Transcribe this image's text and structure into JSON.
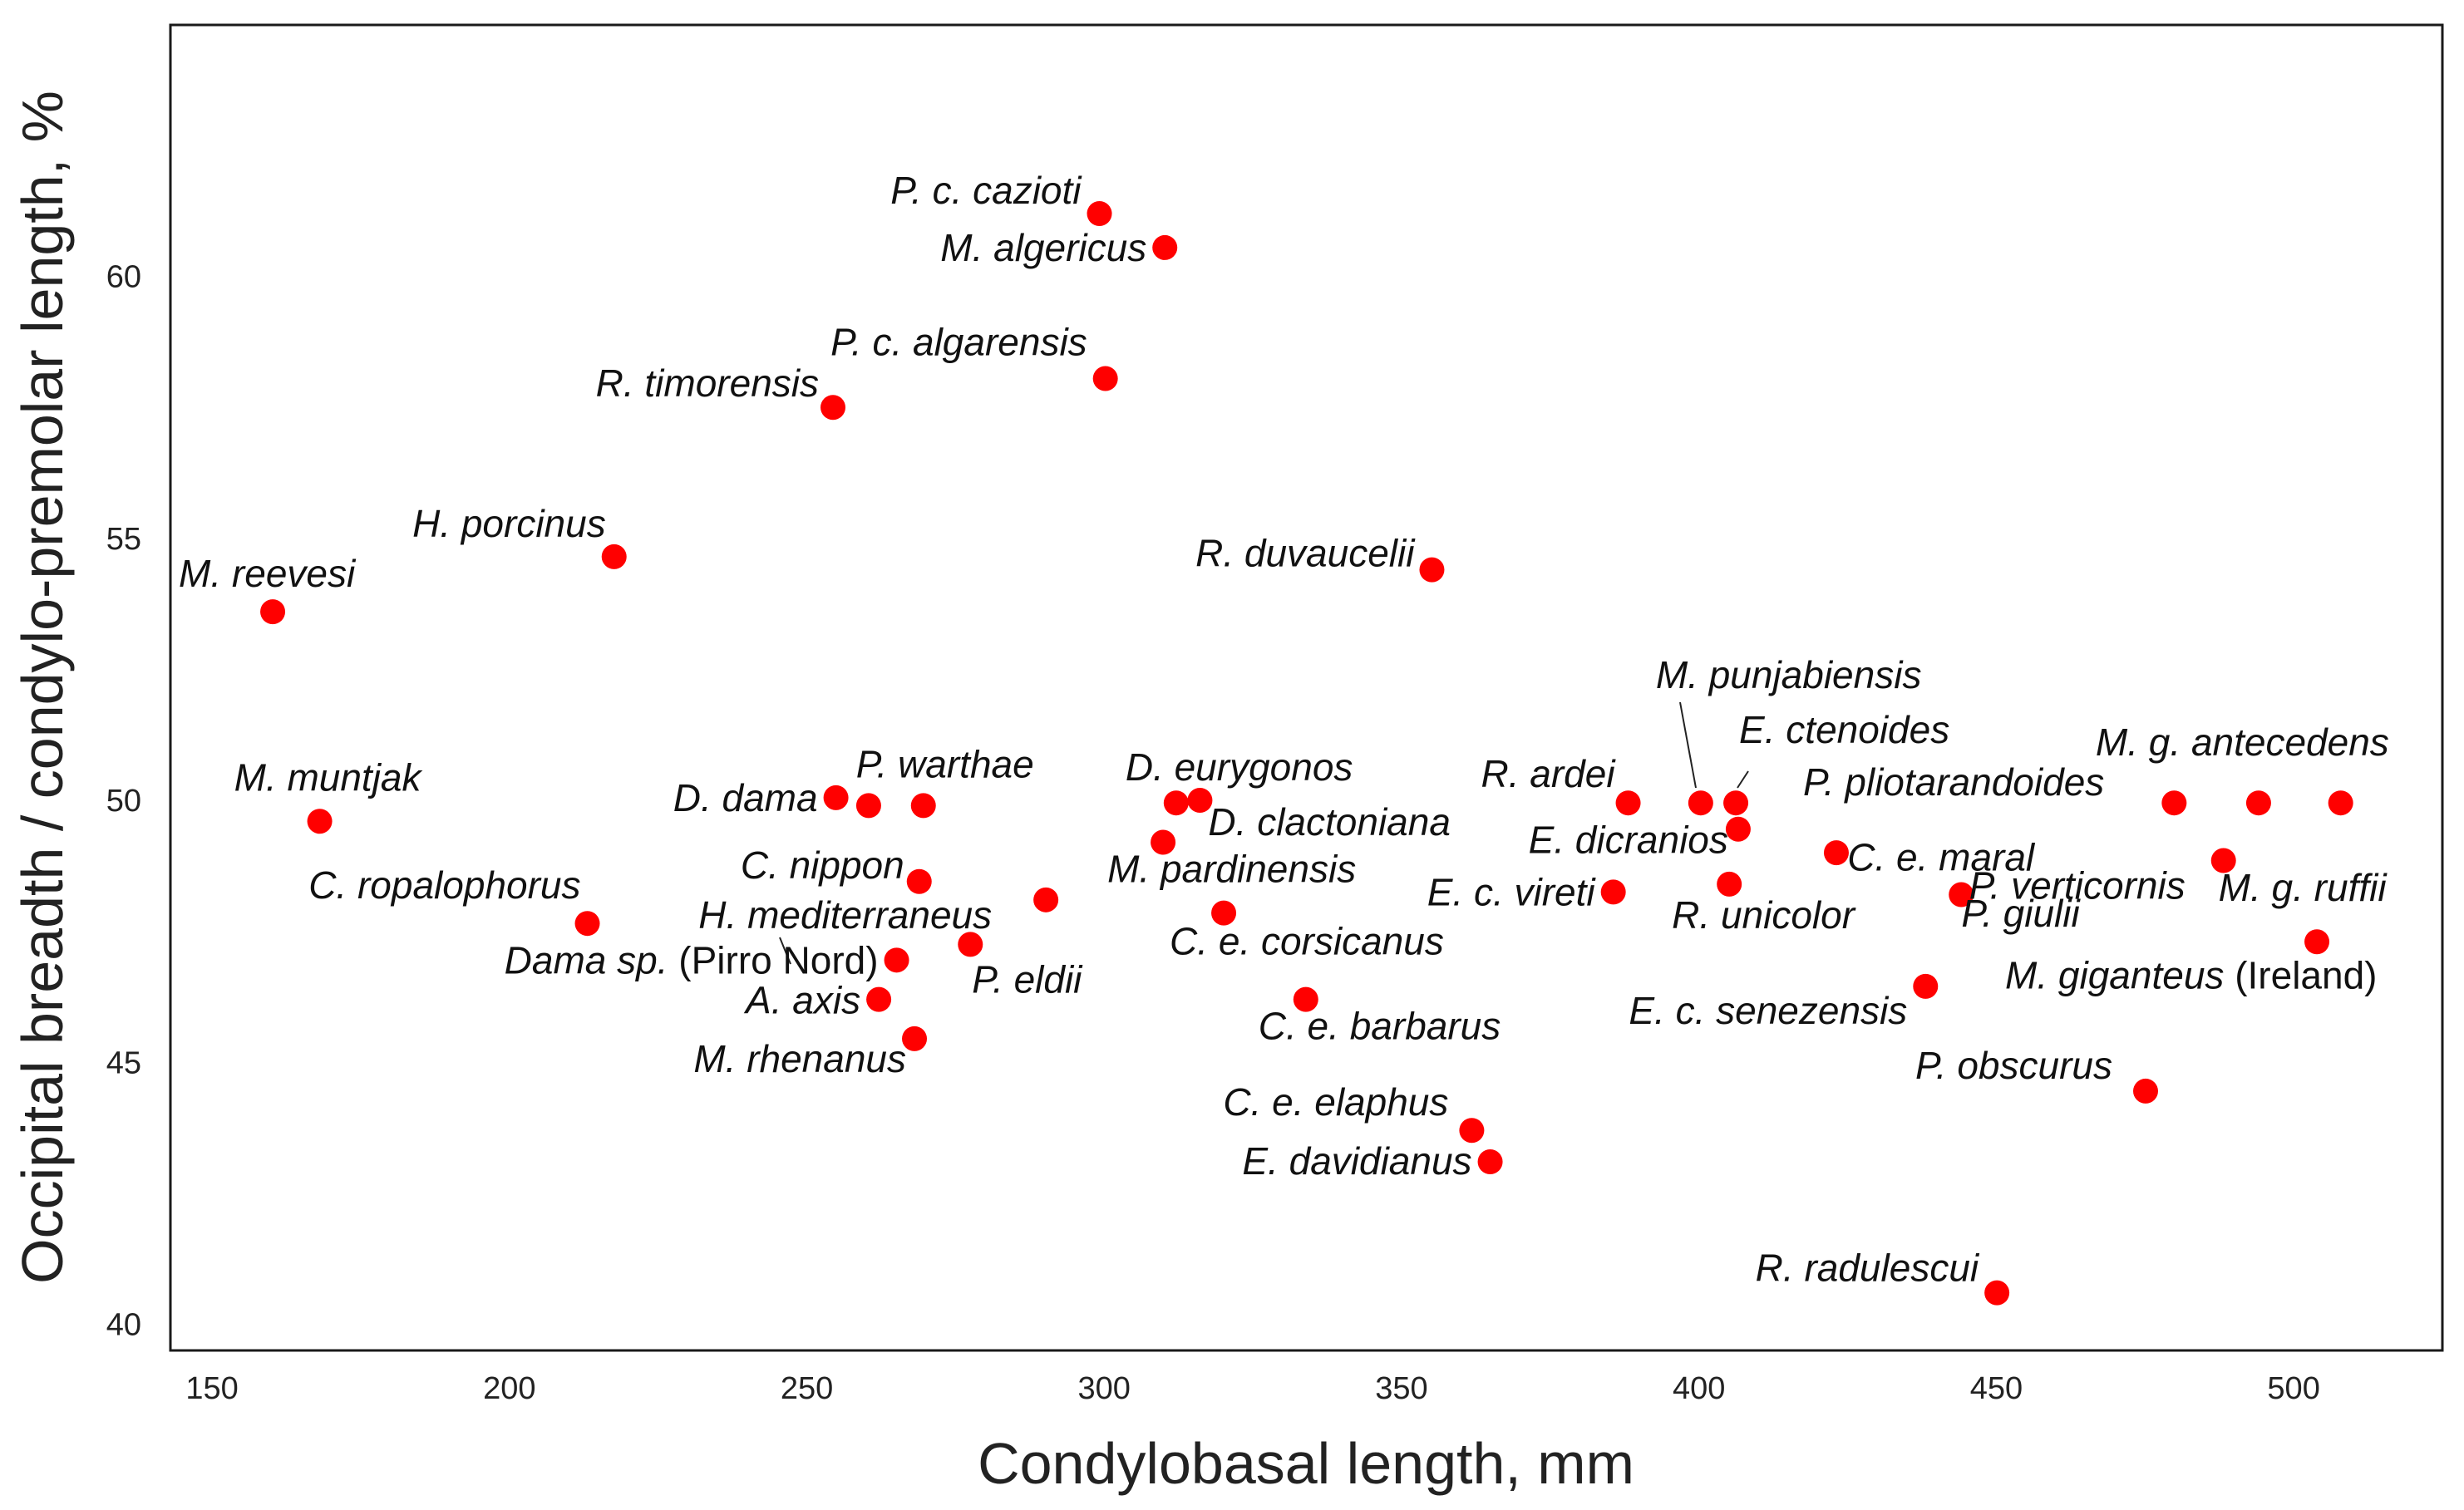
{
  "chart_data": {
    "type": "scatter",
    "title": "",
    "xlabel": "Condylobasal length, mm",
    "ylabel": "Occipital breadth / condylo-premolar length, %",
    "xlim": [
      143,
      525
    ],
    "ylim": [
      39.5,
      64.8
    ],
    "xticks": [
      150,
      200,
      250,
      300,
      350,
      400,
      450,
      500
    ],
    "yticks": [
      40,
      45,
      50,
      55,
      60
    ],
    "grid": false,
    "point_color": "#ff0000",
    "points": [
      {
        "x": 160.2,
        "y": 53.6,
        "name": "M. reevesi",
        "extra": ""
      },
      {
        "x": 168.1,
        "y": 49.6,
        "name": "M. muntjak",
        "extra": ""
      },
      {
        "x": 213.1,
        "y": 47.65,
        "name": "C. ropalophorus",
        "extra": ""
      },
      {
        "x": 217.6,
        "y": 54.65,
        "name": "H. porcinus",
        "extra": ""
      },
      {
        "x": 254.4,
        "y": 57.5,
        "name": "R. timorensis",
        "extra": ""
      },
      {
        "x": 254.9,
        "y": 50.05,
        "name": "D. dama",
        "extra": ""
      },
      {
        "x": 260.4,
        "y": 49.9,
        "name": "",
        "extra": ""
      },
      {
        "x": 262.1,
        "y": 46.2,
        "name": "A. axis",
        "extra": ""
      },
      {
        "x": 265.1,
        "y": 46.95,
        "name": "Dama sp.",
        "extra": "(Pirro Nord)"
      },
      {
        "x": 268.1,
        "y": 45.45,
        "name": "M. rhenanus",
        "extra": ""
      },
      {
        "x": 268.9,
        "y": 48.45,
        "name": "C. nippon",
        "extra": ""
      },
      {
        "x": 269.6,
        "y": 49.9,
        "name": "P. warthae",
        "extra": ""
      },
      {
        "x": 277.5,
        "y": 47.25,
        "name": "P. eldii",
        "extra": ""
      },
      {
        "x": 290.2,
        "y": 48.1,
        "name": "H. mediterraneus",
        "extra": ""
      },
      {
        "x": 299.2,
        "y": 61.2,
        "name": "P. c. cazioti",
        "extra": ""
      },
      {
        "x": 300.2,
        "y": 58.05,
        "name": "P. c. algarensis",
        "extra": ""
      },
      {
        "x": 309.9,
        "y": 49.2,
        "name": "M. pardinensis",
        "extra": ""
      },
      {
        "x": 310.2,
        "y": 60.55,
        "name": "M. algericus",
        "extra": ""
      },
      {
        "x": 312.1,
        "y": 49.95,
        "name": "D. eurygonos",
        "extra": ""
      },
      {
        "x": 316.1,
        "y": 50.0,
        "name": "D. clactoniana",
        "extra": ""
      },
      {
        "x": 320.1,
        "y": 47.85,
        "name": "C. e. corsicanus",
        "extra": ""
      },
      {
        "x": 333.9,
        "y": 46.2,
        "name": "C. e. barbarus",
        "extra": ""
      },
      {
        "x": 355.1,
        "y": 54.4,
        "name": "R. duvaucelii",
        "extra": ""
      },
      {
        "x": 361.8,
        "y": 43.7,
        "name": "C. e. elaphus",
        "extra": ""
      },
      {
        "x": 364.9,
        "y": 43.1,
        "name": "E. davidianus",
        "extra": ""
      },
      {
        "x": 385.6,
        "y": 48.25,
        "name": "E. c. vireti",
        "extra": ""
      },
      {
        "x": 388.1,
        "y": 49.95,
        "name": "R. ardei",
        "extra": ""
      },
      {
        "x": 400.3,
        "y": 49.95,
        "name": "M. punjabiensis",
        "extra": ""
      },
      {
        "x": 405.1,
        "y": 48.4,
        "name": "R. unicolor",
        "extra": ""
      },
      {
        "x": 406.2,
        "y": 49.95,
        "name": "E. ctenoides",
        "extra": ""
      },
      {
        "x": 406.6,
        "y": 49.45,
        "name": "E. dicranios",
        "extra": ""
      },
      {
        "x": 423.1,
        "y": 49.0,
        "name": "P. pliotarandoides",
        "extra": ""
      },
      {
        "x": 438.1,
        "y": 46.45,
        "name": "E. c. senezensis",
        "extra": ""
      },
      {
        "x": 444.1,
        "y": 48.2,
        "name": "C. e. maral",
        "extra": ""
      },
      {
        "x": 450.1,
        "y": 40.6,
        "name": "R. radulescui",
        "extra": ""
      },
      {
        "x": 475.1,
        "y": 44.45,
        "name": "P. obscurus",
        "extra": ""
      },
      {
        "x": 479.9,
        "y": 49.95,
        "name": "P. giulii",
        "extra": ""
      },
      {
        "x": 488.2,
        "y": 48.85,
        "name": "P. verticornis",
        "extra": ""
      },
      {
        "x": 494.1,
        "y": 49.95,
        "name": "M. g. antecedens",
        "extra": ""
      },
      {
        "x": 503.9,
        "y": 47.3,
        "name": "M. giganteus",
        "extra": "(Ireland)"
      },
      {
        "x": 507.9,
        "y": 49.95,
        "name": "M. g. ruffii",
        "extra": ""
      }
    ]
  }
}
